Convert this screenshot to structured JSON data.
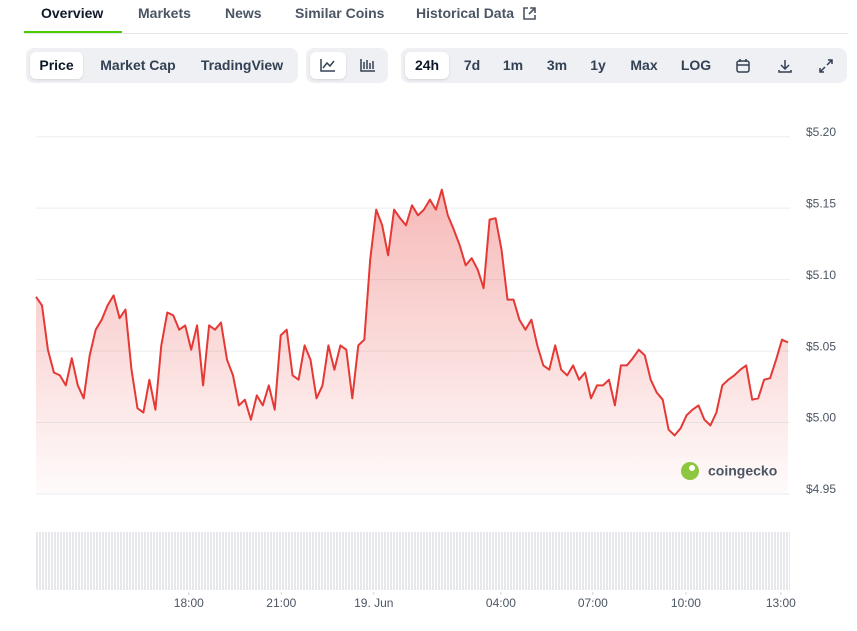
{
  "tabs": [
    "Overview",
    "Markets",
    "News",
    "Similar Coins",
    "Historical Data"
  ],
  "chart_toggles": [
    "Price",
    "Market Cap",
    "TradingView"
  ],
  "ranges": [
    "24h",
    "7d",
    "1m",
    "3m",
    "1y",
    "Max",
    "LOG"
  ],
  "chart_data": {
    "type": "area",
    "color": "#e53935",
    "watermark": "coingecko",
    "grid": true,
    "values": [
      5.088,
      5.082,
      5.051,
      5.035,
      5.033,
      5.026,
      5.045,
      5.026,
      5.017,
      5.047,
      5.065,
      5.072,
      5.082,
      5.089,
      5.073,
      5.079,
      5.037,
      5.01,
      5.007,
      5.03,
      5.009,
      5.054,
      5.077,
      5.075,
      5.065,
      5.068,
      5.051,
      5.068,
      5.026,
      5.068,
      5.065,
      5.07,
      5.044,
      5.033,
      5.012,
      5.016,
      5.002,
      5.019,
      5.012,
      5.026,
      5.009,
      5.061,
      5.065,
      5.033,
      5.03,
      5.054,
      5.044,
      5.017,
      5.026,
      5.054,
      5.037,
      5.054,
      5.051,
      5.017,
      5.054,
      5.058,
      5.114,
      5.149,
      5.138,
      5.117,
      5.149,
      5.143,
      5.138,
      5.152,
      5.145,
      5.149,
      5.156,
      5.149,
      5.163,
      5.145,
      5.135,
      5.124,
      5.11,
      5.115,
      5.107,
      5.094,
      5.142,
      5.143,
      5.121,
      5.086,
      5.086,
      5.072,
      5.065,
      5.072,
      5.054,
      5.04,
      5.037,
      5.054,
      5.037,
      5.033,
      5.04,
      5.03,
      5.035,
      5.017,
      5.026,
      5.026,
      5.03,
      5.012,
      5.04,
      5.04,
      5.045,
      5.051,
      5.047,
      5.03,
      5.021,
      5.016,
      4.995,
      4.991,
      4.996,
      5.005,
      5.009,
      5.012,
      5.002,
      4.998,
      5.007,
      5.026,
      5.03,
      5.033,
      5.037,
      5.04,
      5.016,
      5.017,
      5.03,
      5.031,
      5.044,
      5.058,
      5.056
    ],
    "xlim": [
      0,
      126
    ],
    "xticks": [
      {
        "value": 25.6,
        "label": "18:00"
      },
      {
        "value": 41.1,
        "label": "21:00"
      },
      {
        "value": 56.6,
        "label": "19. Jun"
      },
      {
        "value": 77.9,
        "label": "04:00"
      },
      {
        "value": 93.3,
        "label": "07:00"
      },
      {
        "value": 108.9,
        "label": "10:00"
      },
      {
        "value": 124.8,
        "label": "13:00"
      }
    ],
    "ylim": [
      4.95,
      5.225
    ],
    "yticks": [
      {
        "value": 4.95,
        "label": "$4.95"
      },
      {
        "value": 5.0,
        "label": "$5.00"
      },
      {
        "value": 5.05,
        "label": "$5.05"
      },
      {
        "value": 5.1,
        "label": "$5.10"
      },
      {
        "value": 5.15,
        "label": "$5.15"
      },
      {
        "value": 5.2,
        "label": "$5.20"
      }
    ]
  }
}
